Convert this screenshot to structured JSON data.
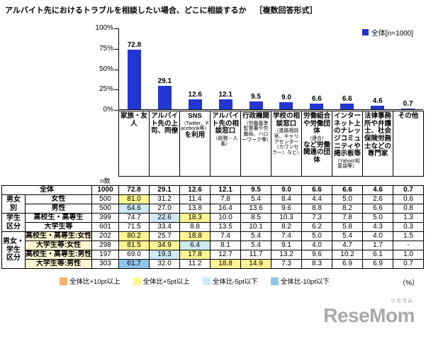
{
  "title": "アルバイト先におけるトラブルを相談したい場合、どこに相談するか",
  "title_format": "［複数回答形式］",
  "unit_note": "（%）",
  "logo": {
    "text": "ReseMom",
    "furigana": "リセマム"
  },
  "colors": {
    "bar": "#2236d2",
    "p10": "#f6b26b",
    "p5": "#fff593",
    "m5": "#cfe9f8",
    "m10": "#8fc5ea",
    "row_label_bg": "#fdf5d2"
  },
  "chart_data": {
    "type": "bar",
    "title": "アルバイト先におけるトラブルを相談したい場合、どこに相談するか［複数回答形式］",
    "legend": "全体[n=1000]",
    "ylabel": "%",
    "ylim": [
      0,
      100
    ],
    "yticks": [
      100,
      75,
      50,
      25,
      0
    ],
    "categories": [
      {
        "main": "家族・友人",
        "note": "",
        "tail": ""
      },
      {
        "main": "アルバイト先の上司、同僚",
        "note": "",
        "tail": ""
      },
      {
        "main": "SNS",
        "note": "（Twitter、Facebook等）",
        "tail": "を利用"
      },
      {
        "main": "アルバイト先の相談窓口",
        "note": "（総務・人事）",
        "tail": ""
      },
      {
        "main": "行政機関",
        "note": "（労働基準監督署や労働局、ハローワーク等）",
        "tail": ""
      },
      {
        "main": "学校の相談窓口",
        "note": "（進路相談室、キャリアセンター（カウンセラー）など）",
        "tail": ""
      },
      {
        "main": "労働組合や労働団体",
        "note": "（連合）",
        "tail": "など労働関連の団体"
      },
      {
        "main": "インターネット上のナレッジコミュニティや掲示板等",
        "note": "（Yahoo!知恵袋等）",
        "tail": ""
      },
      {
        "main": "法律事務所や弁護士、社会保険労務士などの専門家",
        "note": "",
        "tail": ""
      },
      {
        "main": "その他",
        "note": "",
        "tail": ""
      }
    ],
    "values": [
      72.8,
      29.1,
      12.6,
      12.1,
      9.5,
      9.0,
      6.6,
      6.6,
      4.6,
      0.7
    ]
  },
  "table": {
    "n_header": "n数",
    "rows": [
      {
        "label": "全体",
        "label_span": 2,
        "bold": true,
        "n": "1000",
        "values": [
          "72.8",
          "29.1",
          "12.6",
          "12.1",
          "9.5",
          "9.0",
          "6.6",
          "6.6",
          "4.6",
          "0.7"
        ],
        "hl": [
          "",
          "",
          "",
          "",
          "",
          "",
          "",
          "",
          "",
          ""
        ]
      },
      {
        "group": {
          "lines": [
            "男女",
            "別"
          ],
          "span": 2
        },
        "label": "女性",
        "n": "500",
        "values": [
          "81.0",
          "31.2",
          "11.4",
          "7.8",
          "5.4",
          "8.4",
          "4.4",
          "5.0",
          "2.6",
          "0.6"
        ],
        "hl": [
          "p5",
          "",
          "",
          "",
          "",
          "",
          "",
          "",
          "",
          ""
        ]
      },
      {
        "label": "男性",
        "n": "500",
        "values": [
          "64.6",
          "27.0",
          "13.8",
          "16.4",
          "13.6",
          "9.6",
          "8.8",
          "8.2",
          "6.6",
          "0.8"
        ],
        "hl": [
          "m5",
          "",
          "",
          "",
          "",
          "",
          "",
          "",
          "",
          ""
        ]
      },
      {
        "group": {
          "lines": [
            "学生",
            "区分"
          ],
          "span": 2
        },
        "label": "高校生・高専生",
        "n": "399",
        "values": [
          "74.7",
          "22.6",
          "18.3",
          "10.0",
          "8.5",
          "10.3",
          "7.3",
          "7.8",
          "5.0",
          "1.3"
        ],
        "hl": [
          "",
          "m5",
          "p5",
          "",
          "",
          "",
          "",
          "",
          "",
          ""
        ]
      },
      {
        "label": "大学生等",
        "n": "601",
        "values": [
          "71.5",
          "33.4",
          "8.8",
          "13.5",
          "10.1",
          "8.2",
          "6.2",
          "5.8",
          "4.3",
          "0.3"
        ],
        "hl": [
          "",
          "",
          "",
          "",
          "",
          "",
          "",
          "",
          "",
          ""
        ]
      },
      {
        "group": {
          "lines": [
            "男女・",
            "学生",
            "区分"
          ],
          "span": 4
        },
        "label": "高校生・高専生:女性",
        "label_bg": true,
        "n": "202",
        "values": [
          "80.2",
          "25.7",
          "18.8",
          "7.4",
          "5.4",
          "7.4",
          "5.0",
          "5.4",
          "4.0",
          "1.5"
        ],
        "hl": [
          "p5",
          "",
          "p5",
          "",
          "",
          "",
          "",
          "",
          "",
          ""
        ]
      },
      {
        "label": "大学生等:女性",
        "label_bg": true,
        "n": "298",
        "values": [
          "81.5",
          "34.9",
          "6.4",
          "8.1",
          "5.4",
          "9.1",
          "4.0",
          "4.7",
          "1.7",
          "-"
        ],
        "hl": [
          "p5",
          "p5",
          "m5",
          "",
          "",
          "",
          "",
          "",
          "",
          ""
        ]
      },
      {
        "label": "高校生・高専生:男性",
        "label_bg": true,
        "n": "197",
        "values": [
          "69.0",
          "19.3",
          "17.8",
          "12.7",
          "11.7",
          "13.2",
          "9.6",
          "10.2",
          "6.1",
          "1.0"
        ],
        "hl": [
          "",
          "m5",
          "p5",
          "",
          "",
          "",
          "",
          "",
          "",
          ""
        ]
      },
      {
        "label": "大学生等:男性",
        "label_bg": true,
        "n": "303",
        "values": [
          "61.7",
          "32.0",
          "11.2",
          "18.8",
          "14.9",
          "7.3",
          "8.3",
          "6.9",
          "6.9",
          "0.7"
        ],
        "hl": [
          "m10",
          "",
          "",
          "p5",
          "p5",
          "",
          "",
          "",
          "",
          ""
        ]
      }
    ]
  },
  "highlight_legend": [
    {
      "label": "全体比+10pt以上",
      "color": "#f6b26b"
    },
    {
      "label": "全体比+5pt以上",
      "color": "#fff593"
    },
    {
      "label": "全体比-5pt以下",
      "color": "#cfe9f8"
    },
    {
      "label": "全体比-10pt以下",
      "color": "#8fc5ea"
    }
  ]
}
